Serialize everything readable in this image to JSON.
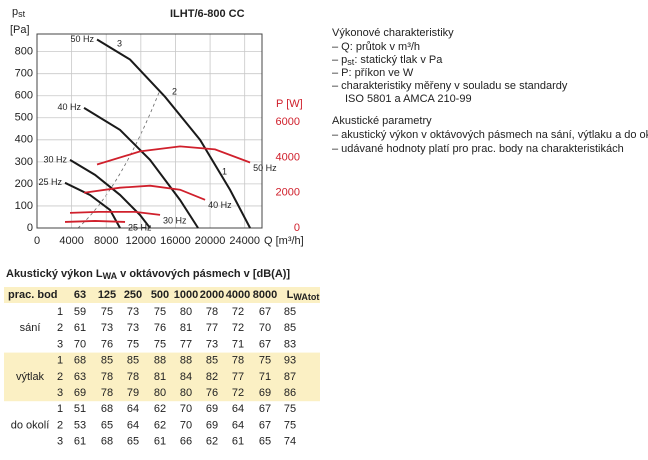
{
  "chart_data": {
    "type": "line",
    "title": "ILHT/6-800 CC",
    "y_label": "p",
    "y_label_sub": "st",
    "y_unit": "[Pa]",
    "y2_label": "P [W]",
    "x_label": "Q [m³/h]",
    "xlim": [
      0,
      26000
    ],
    "xticks": [
      0,
      4000,
      8000,
      12000,
      16000,
      20000,
      24000
    ],
    "ylim": [
      0,
      880
    ],
    "yticks": [
      0,
      100,
      200,
      300,
      400,
      500,
      600,
      700,
      800
    ],
    "y2lim": [
      0,
      11000
    ],
    "y2ticks": [
      0,
      2000,
      4000,
      6000
    ],
    "grid": true,
    "annotations": [
      "1",
      "2",
      "3"
    ],
    "series": [
      {
        "name": "50 Hz",
        "color": "#1a1a1a",
        "x": [
          6936,
          10751,
          14798,
          18844,
          22312,
          24624
        ],
        "values": [
          855,
          764,
          595,
          400,
          173,
          0
        ]
      },
      {
        "name": "40 Hz",
        "color": "#1a1a1a",
        "x": [
          5434,
          9595,
          13064,
          16532,
          18613
        ],
        "values": [
          545,
          445,
          309,
          127,
          0
        ]
      },
      {
        "name": "30 Hz",
        "color": "#1a1a1a",
        "x": [
          3815,
          6705,
          9595,
          11908,
          13064
        ],
        "values": [
          309,
          241,
          150,
          59,
          0
        ]
      },
      {
        "name": "25 Hz",
        "color": "#1a1a1a",
        "x": [
          3237,
          6127,
          8439,
          9595
        ],
        "values": [
          205,
          150,
          82,
          0
        ]
      },
      {
        "name": "50 Hz",
        "color": "#d0202c",
        "axis": "y2",
        "x": [
          6936,
          11908,
          16532,
          20578,
          24624
        ],
        "values": [
          3600,
          4343,
          4629,
          4457,
          3714
        ]
      },
      {
        "name": "40 Hz",
        "color": "#d0202c",
        "axis": "y2",
        "x": [
          5434,
          9595,
          13064,
          16532,
          19422
        ],
        "values": [
          2000,
          2286,
          2400,
          2171,
          1600
        ]
      },
      {
        "name": "30 Hz",
        "color": "#d0202c",
        "axis": "y2",
        "x": [
          3815,
          7100,
          11329,
          14220
        ],
        "values": [
          857,
          914,
          914,
          743
        ]
      },
      {
        "name": "25 Hz",
        "color": "#d0202c",
        "axis": "y2",
        "x": [
          3237,
          6705,
          10173
        ],
        "values": [
          343,
          400,
          343
        ]
      }
    ]
  },
  "notes": {
    "title1": "Výkonové charakteristiky",
    "item_q": "– Q: průtok v m³/h",
    "item_p": [
      "– p",
      "st",
      ": statický tlak v Pa"
    ],
    "item_w": "– P: příkon ve W",
    "item_std": "– charakteristiky měřeny v souladu se standardy",
    "item_std2": "ISO 5801 a AMCA 210-99",
    "title2": "Akustické parametry",
    "item_a1": "– akustický výkon v oktávových pásmech na sání, výtlaku a do okolí",
    "item_a2": "– udávané hodnoty platí pro prac. body na charakteristikách"
  },
  "table": {
    "caption": [
      "Akustický výkon L",
      "WA",
      " v oktávových pásmech v [dB(A)]"
    ],
    "header": [
      "prac. bod",
      "63",
      "125",
      "250",
      "500",
      "1000",
      "2000",
      "4000",
      "8000"
    ],
    "header_total": [
      "L",
      "WAtot"
    ],
    "groups": [
      {
        "label": "sání",
        "rows": [
          [
            1,
            59,
            75,
            73,
            75,
            80,
            78,
            72,
            67,
            85
          ],
          [
            2,
            61,
            73,
            73,
            76,
            81,
            77,
            72,
            70,
            85
          ],
          [
            3,
            70,
            76,
            75,
            75,
            77,
            73,
            71,
            67,
            83
          ]
        ]
      },
      {
        "label": "výtlak",
        "rows": [
          [
            1,
            68,
            85,
            85,
            88,
            88,
            85,
            78,
            75,
            93
          ],
          [
            2,
            63,
            78,
            78,
            81,
            84,
            82,
            77,
            71,
            87
          ],
          [
            3,
            69,
            78,
            79,
            80,
            80,
            76,
            72,
            69,
            86
          ]
        ]
      },
      {
        "label": "do okolí",
        "rows": [
          [
            1,
            51,
            68,
            64,
            62,
            70,
            69,
            64,
            67,
            75
          ],
          [
            2,
            53,
            65,
            64,
            62,
            70,
            69,
            64,
            67,
            75
          ],
          [
            3,
            61,
            68,
            65,
            61,
            66,
            62,
            61,
            65,
            74
          ]
        ]
      }
    ]
  }
}
